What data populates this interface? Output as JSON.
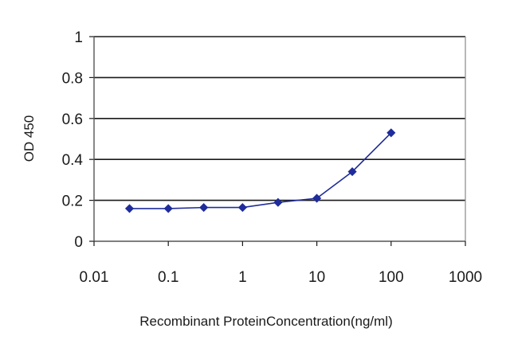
{
  "chart_data": {
    "type": "line",
    "title": "",
    "xlabel": "Recombinant ProteinConcentration(ng/ml)",
    "ylabel": "OD 450",
    "x_scale": "log",
    "xlim": [
      0.01,
      1000
    ],
    "ylim": [
      0,
      1
    ],
    "x_ticks": [
      0.01,
      0.1,
      1,
      10,
      100,
      1000
    ],
    "x_tick_labels": [
      "0.01",
      "0.1",
      "1",
      "10",
      "100",
      "1000"
    ],
    "y_ticks": [
      0,
      0.2,
      0.4,
      0.6,
      0.8,
      1
    ],
    "y_tick_labels": [
      "0",
      "0.2",
      "0.4",
      "0.6",
      "0.8",
      "1"
    ],
    "grid": "horizontal",
    "legend": "none",
    "series": [
      {
        "color": "#1f2c9b",
        "x": [
          0.03,
          0.1,
          0.3,
          1,
          3,
          10,
          30,
          100
        ],
        "y": [
          0.16,
          0.16,
          0.165,
          0.165,
          0.19,
          0.21,
          0.34,
          0.53
        ]
      }
    ]
  }
}
